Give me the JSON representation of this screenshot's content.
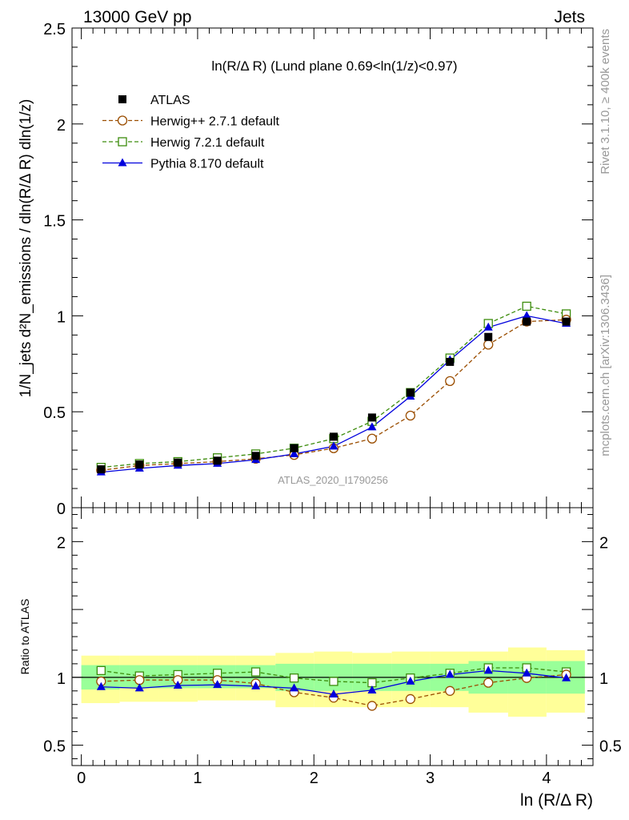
{
  "header": {
    "left": "13000 GeV pp",
    "right": "Jets"
  },
  "side_labels": {
    "rivet": "Rivet 3.1.10, ≥ 400k events",
    "mcplots": "mcplots.cern.ch [arXiv:1306.3436]"
  },
  "watermark": "ATLAS_2020_I1790256",
  "chart_data": [
    {
      "type": "scatter",
      "panel": "main",
      "title": "ln(R/Δ R) (Lund plane 0.69<ln(1/z)<0.97)",
      "xlabel": "ln (R/Δ R)",
      "ylabel": "1/N_jets d²N_emissions / dln(R/Δ R) dln(1/z)",
      "xlim": [
        -0.08,
        4.4
      ],
      "ylim": [
        0,
        2.5
      ],
      "yticks": [
        "0",
        "0.5",
        "1",
        "1.5",
        "2",
        "2.5"
      ],
      "legend_position": "top-left",
      "x": [
        0.17,
        0.5,
        0.83,
        1.17,
        1.5,
        1.83,
        2.17,
        2.5,
        2.83,
        3.17,
        3.5,
        3.83,
        4.17
      ],
      "series": [
        {
          "name": "ATLAS",
          "color": "#000000",
          "marker": "square-filled",
          "values": [
            0.2,
            0.225,
            0.235,
            0.245,
            0.27,
            0.31,
            0.37,
            0.47,
            0.6,
            0.76,
            0.89,
            0.97,
            0.97
          ]
        },
        {
          "name": "Herwig++ 2.7.1 default",
          "color": "#9a4d00",
          "marker": "circle-open",
          "line": "dashed",
          "values": [
            0.195,
            0.22,
            0.23,
            0.24,
            0.255,
            0.275,
            0.31,
            0.36,
            0.48,
            0.66,
            0.85,
            0.97,
            0.98
          ]
        },
        {
          "name": "Herwig 7.2.1 default",
          "color": "#3c8c0c",
          "marker": "square-open",
          "line": "dashed",
          "values": [
            0.21,
            0.23,
            0.24,
            0.26,
            0.28,
            0.31,
            0.36,
            0.45,
            0.6,
            0.78,
            0.96,
            1.05,
            1.01
          ]
        },
        {
          "name": "Pythia 8.170 default",
          "color": "#0000dd",
          "marker": "triangle-filled",
          "line": "solid",
          "values": [
            0.185,
            0.205,
            0.22,
            0.23,
            0.25,
            0.28,
            0.32,
            0.42,
            0.58,
            0.77,
            0.94,
            1.0,
            0.96
          ]
        }
      ]
    },
    {
      "type": "scatter",
      "panel": "ratio",
      "xlabel": "ln (R/Δ R)",
      "ylabel": "Ratio to ATLAS",
      "xlim": [
        -0.08,
        4.4
      ],
      "ylim": [
        0.35,
        2.25
      ],
      "yticks": [
        "0.5",
        "1",
        "2"
      ],
      "xticks": [
        "0",
        "1",
        "2",
        "3",
        "4"
      ],
      "bins": [
        [
          0,
          0.33
        ],
        [
          0.33,
          0.67
        ],
        [
          0.67,
          1.0
        ],
        [
          1.0,
          1.33
        ],
        [
          1.33,
          1.67
        ],
        [
          1.67,
          2.0
        ],
        [
          2.0,
          2.33
        ],
        [
          2.33,
          2.67
        ],
        [
          2.67,
          3.0
        ],
        [
          3.0,
          3.33
        ],
        [
          3.33,
          3.67
        ],
        [
          3.67,
          4.0
        ],
        [
          4.0,
          4.33
        ]
      ],
      "band_inner": [
        [
          0.91,
          1.09
        ],
        [
          0.92,
          1.09
        ],
        [
          0.92,
          1.09
        ],
        [
          0.92,
          1.09
        ],
        [
          0.92,
          1.09
        ],
        [
          0.9,
          1.1
        ],
        [
          0.9,
          1.1
        ],
        [
          0.9,
          1.1
        ],
        [
          0.9,
          1.1
        ],
        [
          0.9,
          1.1
        ],
        [
          0.88,
          1.12
        ],
        [
          0.88,
          1.12
        ],
        [
          0.88,
          1.12
        ]
      ],
      "band_outer": [
        [
          0.81,
          1.16
        ],
        [
          0.82,
          1.16
        ],
        [
          0.82,
          1.16
        ],
        [
          0.83,
          1.16
        ],
        [
          0.83,
          1.16
        ],
        [
          0.78,
          1.18
        ],
        [
          0.78,
          1.19
        ],
        [
          0.78,
          1.18
        ],
        [
          0.78,
          1.19
        ],
        [
          0.78,
          1.19
        ],
        [
          0.74,
          1.19
        ],
        [
          0.71,
          1.22
        ],
        [
          0.74,
          1.2
        ]
      ],
      "x": [
        0.17,
        0.5,
        0.83,
        1.17,
        1.5,
        1.83,
        2.17,
        2.5,
        2.83,
        3.17,
        3.5,
        3.83,
        4.17
      ],
      "series": [
        {
          "name": "Herwig++ 2.7.1 default",
          "color": "#9a4d00",
          "marker": "circle-open",
          "line": "dashed",
          "values": [
            0.97,
            0.98,
            0.98,
            0.98,
            0.955,
            0.89,
            0.85,
            0.79,
            0.84,
            0.9,
            0.96,
            0.995,
            1.02
          ]
        },
        {
          "name": "Herwig 7.2.1 default",
          "color": "#3c8c0c",
          "marker": "square-open",
          "line": "dashed",
          "values": [
            1.05,
            1.01,
            1.02,
            1.03,
            1.04,
            0.995,
            0.97,
            0.96,
            0.995,
            1.03,
            1.07,
            1.07,
            1.04
          ]
        },
        {
          "name": "Pythia 8.170 default",
          "color": "#0000dd",
          "marker": "triangle-filled",
          "line": "solid",
          "values": [
            0.93,
            0.92,
            0.94,
            0.945,
            0.935,
            0.92,
            0.875,
            0.905,
            0.97,
            1.02,
            1.05,
            1.03,
            0.995
          ]
        }
      ]
    }
  ]
}
